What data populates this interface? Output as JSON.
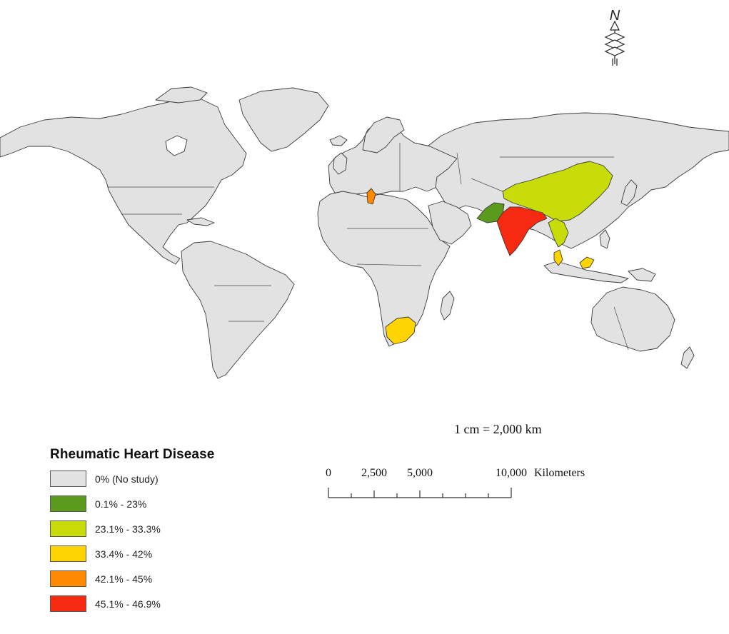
{
  "legend": {
    "title": "Rheumatic Heart Disease",
    "items": [
      {
        "label": "0% (No study)",
        "color": "#e2e2e2"
      },
      {
        "label": "0.1% - 23%",
        "color": "#5a9a1c"
      },
      {
        "label": "23.1% - 33.3%",
        "color": "#c8dc0a"
      },
      {
        "label": "33.4% - 42%",
        "color": "#ffd400"
      },
      {
        "label": "42.1% - 45%",
        "color": "#ff8a00"
      },
      {
        "label": "45.1% - 46.9%",
        "color": "#f62a10"
      }
    ]
  },
  "scale": {
    "ratio": "1 cm = 2,000 km",
    "ticks": [
      "0",
      "2,500",
      "5,000",
      "10,000"
    ],
    "unit": "Kilometers"
  },
  "north_arrow": {
    "letter": "N"
  },
  "colors": {
    "no_study": "#e2e2e2",
    "band_1": "#5a9a1c",
    "band_2": "#c8dc0a",
    "band_3": "#ffd400",
    "band_4": "#ff8a00",
    "band_5": "#f62a10"
  }
}
